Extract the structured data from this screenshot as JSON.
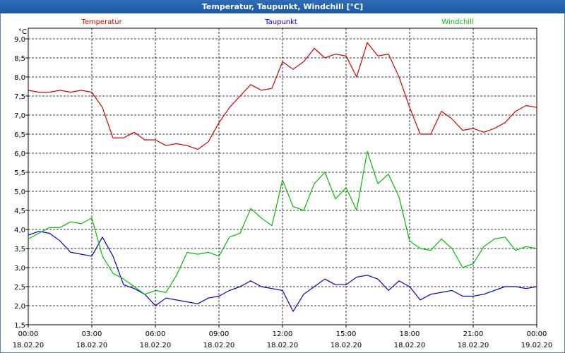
{
  "window": {
    "title": "Temperatur, Taupunkt, Windchill [°C]"
  },
  "chart_data": {
    "type": "line",
    "title": "Temperatur, Taupunkt, Windchill [°C]",
    "ylabel": "°C",
    "ylim": [
      1.5,
      9.0
    ],
    "y_ticks": [
      "1,5",
      "2,0",
      "2,5",
      "3,0",
      "3,5",
      "4,0",
      "4,5",
      "5,0",
      "5,5",
      "6,0",
      "6,5",
      "7,0",
      "7,5",
      "8,0",
      "8,5",
      "9,0"
    ],
    "x_ticks": [
      {
        "time": "00:00",
        "date": "18.02.20"
      },
      {
        "time": "03:00",
        "date": "18.02.20"
      },
      {
        "time": "06:00",
        "date": "18.02.20"
      },
      {
        "time": "09:00",
        "date": "18.02.20"
      },
      {
        "time": "12:00",
        "date": "18.02.20"
      },
      {
        "time": "15:00",
        "date": "18.02.20"
      },
      {
        "time": "18:00",
        "date": "18.02.20"
      },
      {
        "time": "21:00",
        "date": "18.02.20"
      },
      {
        "time": "00:00",
        "date": "19.02.20"
      }
    ],
    "grid": true,
    "legend_position": "top",
    "series": [
      {
        "name": "Temperatur",
        "color": "#cc0000",
        "x_hours": [
          0,
          0.5,
          1,
          1.5,
          2,
          2.5,
          3,
          3.5,
          4,
          4.5,
          5,
          5.5,
          6,
          6.5,
          7,
          7.5,
          8,
          8.5,
          9,
          9.5,
          10,
          10.5,
          11,
          11.5,
          12,
          12.5,
          13,
          13.5,
          14,
          14.5,
          15,
          15.5,
          16,
          16.5,
          17,
          17.5,
          18,
          18.5,
          19,
          19.5,
          20,
          20.5,
          21,
          21.5,
          22,
          22.5,
          23,
          23.5,
          24
        ],
        "values": [
          7.65,
          7.6,
          7.6,
          7.65,
          7.6,
          7.65,
          7.6,
          7.2,
          6.4,
          6.4,
          6.55,
          6.35,
          6.35,
          6.2,
          6.25,
          6.2,
          6.1,
          6.3,
          6.8,
          7.2,
          7.5,
          7.8,
          7.65,
          7.7,
          8.4,
          8.2,
          8.4,
          8.75,
          8.5,
          8.6,
          8.55,
          8.0,
          8.9,
          8.55,
          8.6,
          8.0,
          7.2,
          6.5,
          6.5,
          7.1,
          6.9,
          6.6,
          6.65,
          6.55,
          6.65,
          6.8,
          7.1,
          7.25,
          7.2
        ]
      },
      {
        "name": "Taupunkt",
        "color": "#0000cc",
        "x_hours": [
          0,
          0.5,
          1,
          1.5,
          2,
          2.5,
          3,
          3.5,
          4,
          4.5,
          5,
          5.5,
          6,
          6.5,
          7,
          7.5,
          8,
          8.5,
          9,
          9.5,
          10,
          10.5,
          11,
          11.5,
          12,
          12.5,
          13,
          13.5,
          14,
          14.5,
          15,
          15.5,
          16,
          16.5,
          17,
          17.5,
          18,
          18.5,
          19,
          19.5,
          20,
          20.5,
          21,
          21.5,
          22,
          22.5,
          23,
          23.5,
          24
        ],
        "values": [
          3.85,
          3.95,
          3.9,
          3.7,
          3.4,
          3.35,
          3.3,
          3.8,
          3.3,
          2.55,
          2.45,
          2.3,
          2.0,
          2.2,
          2.15,
          2.1,
          2.05,
          2.2,
          2.25,
          2.4,
          2.5,
          2.65,
          2.5,
          2.45,
          2.4,
          1.85,
          2.3,
          2.5,
          2.7,
          2.55,
          2.55,
          2.75,
          2.8,
          2.7,
          2.4,
          2.65,
          2.5,
          2.15,
          2.3,
          2.35,
          2.4,
          2.25,
          2.25,
          2.3,
          2.4,
          2.5,
          2.5,
          2.45,
          2.5
        ]
      },
      {
        "name": "Windchill",
        "color": "#00bb00",
        "x_hours": [
          0,
          0.5,
          1,
          1.5,
          2,
          2.5,
          3,
          3.5,
          4,
          4.5,
          5,
          5.5,
          6,
          6.5,
          7,
          7.5,
          8,
          8.5,
          9,
          9.5,
          10,
          10.5,
          11,
          11.5,
          12,
          12.5,
          13,
          13.5,
          14,
          14.5,
          15,
          15.5,
          16,
          16.5,
          17,
          17.5,
          18,
          18.5,
          19,
          19.5,
          20,
          20.5,
          21,
          21.5,
          22,
          22.5,
          23,
          23.5,
          24
        ],
        "values": [
          3.75,
          3.9,
          4.05,
          4.05,
          4.2,
          4.15,
          4.3,
          3.3,
          2.85,
          2.7,
          2.5,
          2.3,
          2.4,
          2.35,
          2.8,
          3.4,
          3.35,
          3.4,
          3.3,
          3.8,
          3.9,
          4.55,
          4.3,
          4.1,
          5.3,
          4.6,
          4.5,
          5.2,
          5.5,
          4.8,
          5.1,
          4.5,
          6.05,
          5.2,
          5.45,
          4.85,
          3.7,
          3.5,
          3.45,
          3.75,
          3.5,
          3.0,
          3.1,
          3.55,
          3.75,
          3.8,
          3.45,
          3.55,
          3.5
        ]
      }
    ]
  }
}
